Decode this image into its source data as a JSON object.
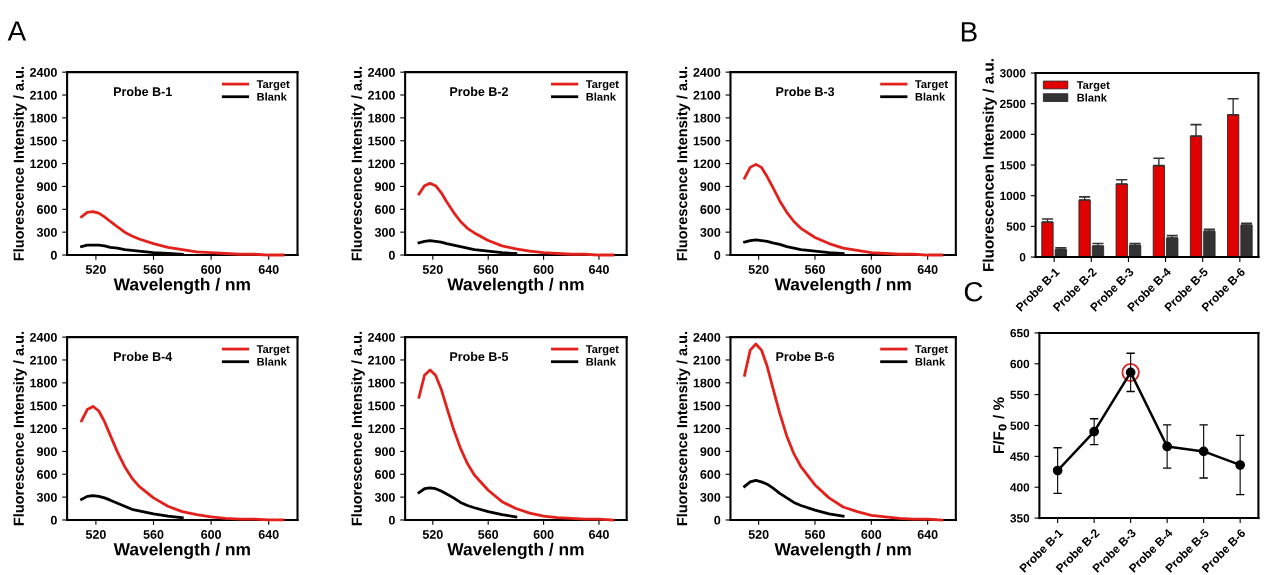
{
  "chart_data": [
    {
      "type": "line",
      "title": "Probe B-1",
      "xlabel": "Wavelength / nm",
      "ylabel": "Fluorescence Intensity / a.u.",
      "annotations": [
        "A"
      ],
      "xlim": [
        500,
        660
      ],
      "xticks": [
        520,
        560,
        600,
        640
      ],
      "ylim": [
        0,
        2400
      ],
      "yticks": [
        0,
        300,
        600,
        900,
        1200,
        1500,
        1800,
        2100,
        2400
      ],
      "legend": "top right",
      "grid": false,
      "x": [
        510,
        514,
        518,
        522,
        526,
        530,
        535,
        540,
        545,
        550,
        560,
        570,
        580,
        590,
        600,
        610,
        620,
        630,
        640,
        650
      ],
      "series": [
        {
          "name": "Target",
          "color": "#e3211c",
          "values": [
            500,
            560,
            570,
            550,
            500,
            440,
            370,
            300,
            250,
            210,
            150,
            100,
            70,
            40,
            30,
            20,
            10,
            10,
            0,
            0
          ]
        },
        {
          "name": "Blank",
          "color": "#000000",
          "x": [
            510,
            514,
            518,
            522,
            526,
            530,
            535,
            540,
            545,
            550,
            560,
            570,
            580
          ],
          "values": [
            110,
            130,
            130,
            130,
            120,
            100,
            90,
            70,
            60,
            50,
            30,
            20,
            10
          ]
        }
      ]
    },
    {
      "type": "line",
      "title": "Probe B-2",
      "xlabel": "Wavelength / nm",
      "ylabel": "Fluorescence Intensity / a.u.",
      "xlim": [
        500,
        660
      ],
      "xticks": [
        520,
        560,
        600,
        640
      ],
      "ylim": [
        0,
        2400
      ],
      "yticks": [
        0,
        300,
        600,
        900,
        1200,
        1500,
        1800,
        2100,
        2400
      ],
      "legend": "top right",
      "grid": false,
      "x": [
        510,
        514,
        518,
        522,
        526,
        530,
        535,
        540,
        545,
        550,
        560,
        570,
        580,
        590,
        600,
        610,
        620,
        630,
        640,
        650
      ],
      "series": [
        {
          "name": "Target",
          "color": "#e3211c",
          "values": [
            800,
            910,
            940,
            910,
            820,
            700,
            560,
            440,
            350,
            290,
            190,
            120,
            80,
            50,
            30,
            20,
            10,
            10,
            0,
            0
          ]
        },
        {
          "name": "Blank",
          "color": "#000000",
          "x": [
            510,
            514,
            518,
            522,
            526,
            530,
            535,
            540,
            545,
            550,
            560,
            570,
            580
          ],
          "values": [
            160,
            180,
            190,
            180,
            170,
            150,
            130,
            110,
            90,
            70,
            50,
            30,
            20
          ]
        }
      ]
    },
    {
      "type": "line",
      "title": "Probe B-3",
      "xlabel": "Wavelength / nm",
      "ylabel": "Fluorescence Intensity / a.u.",
      "xlim": [
        500,
        660
      ],
      "xticks": [
        520,
        560,
        600,
        640
      ],
      "ylim": [
        0,
        2400
      ],
      "yticks": [
        0,
        300,
        600,
        900,
        1200,
        1500,
        1800,
        2100,
        2400
      ],
      "legend": "top right",
      "grid": false,
      "x": [
        510,
        514,
        518,
        522,
        526,
        530,
        535,
        540,
        545,
        550,
        560,
        570,
        580,
        590,
        600,
        610,
        620,
        630,
        640,
        650
      ],
      "series": [
        {
          "name": "Target",
          "color": "#e3211c",
          "values": [
            1010,
            1150,
            1190,
            1150,
            1030,
            890,
            710,
            560,
            440,
            350,
            230,
            150,
            90,
            60,
            30,
            20,
            10,
            10,
            0,
            0
          ]
        },
        {
          "name": "Blank",
          "color": "#000000",
          "x": [
            510,
            514,
            518,
            522,
            526,
            530,
            535,
            540,
            545,
            550,
            560,
            570,
            580
          ],
          "values": [
            170,
            190,
            200,
            190,
            180,
            160,
            140,
            110,
            90,
            70,
            50,
            30,
            20
          ]
        }
      ]
    },
    {
      "type": "line",
      "title": "Probe B-4",
      "xlabel": "Wavelength / nm",
      "ylabel": "Fluorescence Intensity / a.u.",
      "xlim": [
        500,
        660
      ],
      "xticks": [
        520,
        560,
        600,
        640
      ],
      "ylim": [
        0,
        2400
      ],
      "yticks": [
        0,
        300,
        600,
        900,
        1200,
        1500,
        1800,
        2100,
        2400
      ],
      "legend": "top right",
      "grid": false,
      "x": [
        510,
        514,
        518,
        522,
        526,
        530,
        535,
        540,
        545,
        550,
        560,
        570,
        580,
        590,
        600,
        610,
        620,
        630,
        640,
        650
      ],
      "series": [
        {
          "name": "Target",
          "color": "#e3211c",
          "values": [
            1300,
            1450,
            1490,
            1430,
            1290,
            1110,
            890,
            700,
            550,
            440,
            290,
            180,
            110,
            70,
            40,
            20,
            10,
            10,
            0,
            0
          ]
        },
        {
          "name": "Blank",
          "color": "#000000",
          "x": [
            510,
            514,
            518,
            522,
            526,
            530,
            535,
            540,
            545,
            550,
            560,
            570,
            580
          ],
          "values": [
            270,
            310,
            320,
            310,
            290,
            260,
            220,
            180,
            140,
            120,
            80,
            50,
            30
          ]
        }
      ]
    },
    {
      "type": "line",
      "title": "Probe B-5",
      "xlabel": "Wavelength / nm",
      "ylabel": "Fluorescence Intensity / a.u.",
      "xlim": [
        500,
        660
      ],
      "xticks": [
        520,
        560,
        600,
        640
      ],
      "ylim": [
        0,
        2400
      ],
      "yticks": [
        0,
        300,
        600,
        900,
        1200,
        1500,
        1800,
        2100,
        2400
      ],
      "legend": "top right",
      "grid": false,
      "x": [
        510,
        514,
        518,
        522,
        526,
        530,
        535,
        540,
        545,
        550,
        560,
        570,
        580,
        590,
        600,
        610,
        620,
        630,
        640,
        650
      ],
      "series": [
        {
          "name": "Target",
          "color": "#e3211c",
          "values": [
            1610,
            1900,
            1970,
            1900,
            1720,
            1480,
            1190,
            940,
            740,
            590,
            390,
            240,
            150,
            90,
            50,
            30,
            20,
            10,
            10,
            0
          ]
        },
        {
          "name": "Blank",
          "color": "#000000",
          "x": [
            510,
            514,
            518,
            522,
            526,
            530,
            535,
            540,
            545,
            550,
            560,
            570,
            580
          ],
          "values": [
            360,
            410,
            420,
            410,
            380,
            340,
            290,
            230,
            190,
            160,
            110,
            70,
            40
          ]
        }
      ]
    },
    {
      "type": "line",
      "title": "Probe B-6",
      "xlabel": "Wavelength / nm",
      "ylabel": "Fluorescence Intensity / a.u.",
      "xlim": [
        500,
        660
      ],
      "xticks": [
        520,
        560,
        600,
        640
      ],
      "ylim": [
        0,
        2400
      ],
      "yticks": [
        0,
        300,
        600,
        900,
        1200,
        1500,
        1800,
        2100,
        2400
      ],
      "legend": "top right",
      "grid": false,
      "x": [
        510,
        514,
        518,
        522,
        526,
        530,
        535,
        540,
        545,
        550,
        560,
        570,
        580,
        590,
        600,
        610,
        620,
        630,
        640,
        650
      ],
      "series": [
        {
          "name": "Target",
          "color": "#e3211c",
          "values": [
            1900,
            2230,
            2310,
            2230,
            2020,
            1740,
            1400,
            1100,
            870,
            700,
            460,
            290,
            170,
            110,
            60,
            40,
            20,
            10,
            10,
            0
          ]
        },
        {
          "name": "Blank",
          "color": "#000000",
          "x": [
            510,
            514,
            518,
            522,
            526,
            530,
            535,
            540,
            545,
            550,
            560,
            570,
            580
          ],
          "values": [
            440,
            500,
            520,
            500,
            470,
            420,
            350,
            290,
            230,
            190,
            130,
            80,
            50
          ]
        }
      ]
    },
    {
      "type": "bar",
      "ylabel": "Fluorescencen Intensity / a.u.",
      "annotations": [
        "B"
      ],
      "categories": [
        "Probe B-1",
        "Probe B-2",
        "Probe B-3",
        "Probe B-4",
        "Probe B-5",
        "Probe B-6"
      ],
      "ylim": [
        0,
        3000
      ],
      "yticks": [
        0,
        500,
        1000,
        1500,
        2000,
        2500,
        3000
      ],
      "legend": "top left",
      "grid": false,
      "series": [
        {
          "name": "Target",
          "color": "#e00000",
          "values": [
            570,
            930,
            1190,
            1490,
            1970,
            2320
          ],
          "errors": [
            50,
            50,
            70,
            120,
            190,
            260
          ]
        },
        {
          "name": "Blank",
          "color": "#333333",
          "values": [
            120,
            180,
            190,
            310,
            420,
            520
          ],
          "errors": [
            30,
            40,
            30,
            40,
            30,
            30
          ]
        }
      ]
    },
    {
      "type": "line",
      "ylabel": "F/F$_{0}$ / %",
      "annotations": [
        "C"
      ],
      "categories": [
        "Probe B-1",
        "Probe B-2",
        "Probe B-3",
        "Probe B-4",
        "Probe B-5",
        "Probe B-6"
      ],
      "ylim": [
        350,
        650
      ],
      "yticks": [
        350,
        400,
        450,
        500,
        550,
        600,
        650
      ],
      "marker": "circle",
      "grid": false,
      "series": [
        {
          "color": "#000000",
          "values": [
            427,
            490,
            586,
            466,
            458,
            436
          ],
          "errors": [
            37,
            21,
            31,
            35,
            43,
            48
          ]
        }
      ]
    }
  ]
}
